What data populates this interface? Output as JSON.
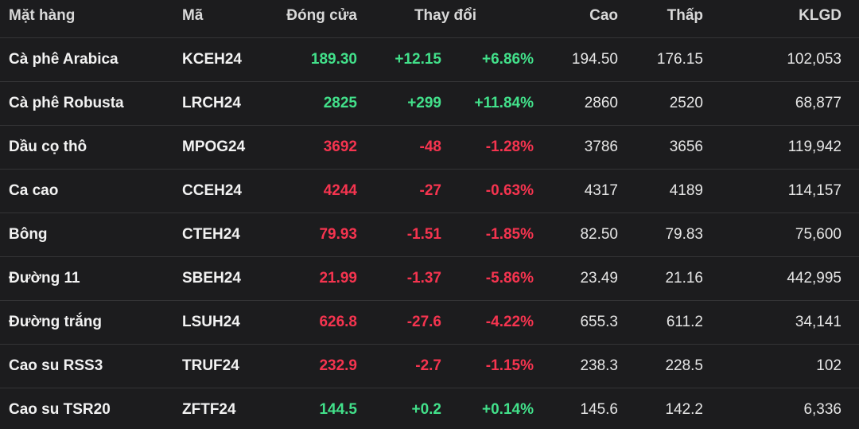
{
  "table": {
    "header": [
      "Mặt hàng",
      "Mã",
      "Đóng cửa",
      "Thay đổi",
      "Cao",
      "Thấp",
      "KLGD"
    ],
    "rows": [
      [
        "Cà phê Arabica",
        "KCEH24",
        "189.30",
        "+12.15",
        "+6.86%",
        "194.50",
        "176.15",
        "102,053"
      ],
      [
        "Cà phê Robusta",
        "LRCH24",
        "2825",
        "+299",
        "+11.84%",
        "2860",
        "2520",
        "68,877"
      ],
      [
        "Dầu cọ thô",
        "MPOG24",
        "3692",
        "-48",
        "-1.28%",
        "3786",
        "3656",
        "119,942"
      ],
      [
        "Ca cao",
        "CCEH24",
        "4244",
        "-27",
        "-0.63%",
        "4317",
        "4189",
        "114,157"
      ],
      [
        "Bông",
        "CTEH24",
        "79.93",
        "-1.51",
        "-1.85%",
        "82.50",
        "79.83",
        "75,600"
      ],
      [
        "Đường 11",
        "SBEH24",
        "21.99",
        "-1.37",
        "-5.86%",
        "23.49",
        "21.16",
        "442,995"
      ],
      [
        "Đường trắng",
        "LSUH24",
        "626.8",
        "-27.6",
        "-4.22%",
        "655.3",
        "611.2",
        "34,141"
      ],
      [
        "Cao su RSS3",
        "TRUF24",
        "232.9",
        "-2.7",
        "-1.15%",
        "238.3",
        "228.5",
        "102"
      ],
      [
        "Cao su TSR20",
        "ZFTF24",
        "144.5",
        "+0.2",
        "+0.14%",
        "145.6",
        "142.2",
        "6,336"
      ]
    ]
  }
}
